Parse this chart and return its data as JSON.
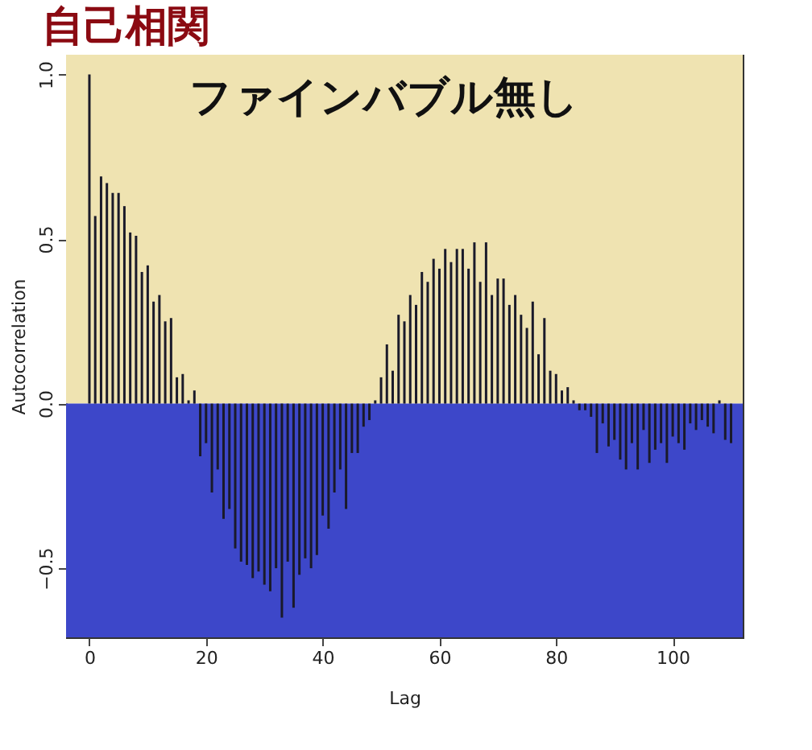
{
  "chart_data": {
    "type": "bar",
    "title": "自己相関",
    "xlabel": "Lag",
    "ylabel": "Autocorrelation",
    "annotations": [
      "ファインバブル無し"
    ],
    "x": [
      0,
      1,
      2,
      3,
      4,
      5,
      6,
      7,
      8,
      9,
      10,
      11,
      12,
      13,
      14,
      15,
      16,
      17,
      18,
      19,
      20,
      21,
      22,
      23,
      24,
      25,
      26,
      27,
      28,
      29,
      30,
      31,
      32,
      33,
      34,
      35,
      36,
      37,
      38,
      39,
      40,
      41,
      42,
      43,
      44,
      45,
      46,
      47,
      48,
      49,
      50,
      51,
      52,
      53,
      54,
      55,
      56,
      57,
      58,
      59,
      60,
      61,
      62,
      63,
      64,
      65,
      66,
      67,
      68,
      69,
      70,
      71,
      72,
      73,
      74,
      75,
      76,
      77,
      78,
      79,
      80,
      81,
      82,
      83,
      84,
      85,
      86,
      87,
      88,
      89,
      90,
      91,
      92,
      93,
      94,
      95,
      96,
      97,
      98,
      99,
      100,
      101,
      102,
      103,
      104,
      105,
      106,
      107,
      108,
      109,
      110
    ],
    "series": [
      {
        "color": "#1a1a2a",
        "values": [
          1.0,
          0.57,
          0.69,
          0.67,
          0.64,
          0.64,
          0.6,
          0.52,
          0.51,
          0.4,
          0.42,
          0.31,
          0.33,
          0.25,
          0.26,
          0.08,
          0.09,
          0.01,
          0.04,
          -0.16,
          -0.12,
          -0.27,
          -0.2,
          -0.35,
          -0.32,
          -0.44,
          -0.48,
          -0.49,
          -0.53,
          -0.51,
          -0.55,
          -0.57,
          -0.5,
          -0.65,
          -0.48,
          -0.62,
          -0.52,
          -0.47,
          -0.5,
          -0.46,
          -0.34,
          -0.38,
          -0.27,
          -0.2,
          -0.32,
          -0.15,
          -0.15,
          -0.07,
          -0.05,
          0.01,
          0.08,
          0.18,
          0.1,
          0.27,
          0.25,
          0.33,
          0.3,
          0.4,
          0.37,
          0.44,
          0.41,
          0.47,
          0.43,
          0.47,
          0.47,
          0.41,
          0.49,
          0.37,
          0.49,
          0.33,
          0.38,
          0.38,
          0.3,
          0.33,
          0.27,
          0.23,
          0.31,
          0.15,
          0.26,
          0.1,
          0.09,
          0.04,
          0.05,
          0.01,
          -0.02,
          -0.02,
          -0.04,
          -0.15,
          -0.06,
          -0.13,
          -0.11,
          -0.17,
          -0.2,
          -0.12,
          -0.2,
          -0.08,
          -0.18,
          -0.14,
          -0.12,
          -0.18,
          -0.1,
          -0.12,
          -0.14,
          -0.06,
          -0.08,
          -0.05,
          -0.07,
          -0.09,
          0.01,
          -0.11,
          -0.12
        ]
      }
    ],
    "xlim": [
      -4,
      112
    ],
    "xticks": [
      0,
      20,
      40,
      60,
      80,
      100
    ],
    "ylim": [
      -0.71,
      1.06
    ],
    "yticks": [
      -0.5,
      {
        "value": 0,
        "label": "0.0"
      },
      0.5,
      {
        "value": 1,
        "label": "1.0"
      }
    ],
    "bands": [
      {
        "axis": "y",
        "from": 0,
        "to": 1.06,
        "color": "#efe3b1"
      },
      {
        "axis": "y",
        "from": -0.71,
        "to": 0,
        "color": "#3d47c9"
      }
    ]
  }
}
